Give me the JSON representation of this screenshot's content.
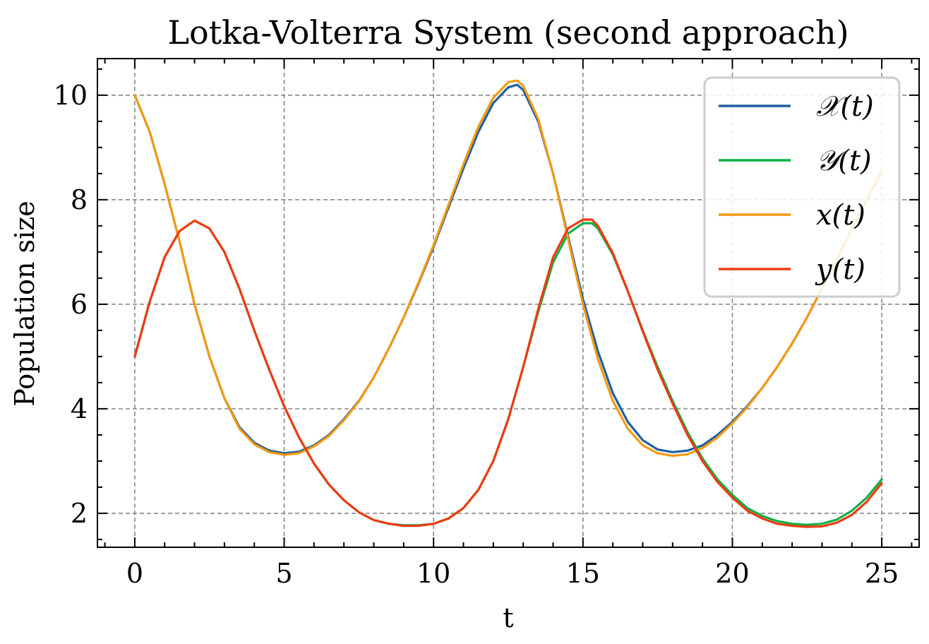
{
  "chart_data": {
    "type": "line",
    "title": "Lotka-Volterra System (second approach)",
    "xlabel": "t",
    "ylabel": "Population size",
    "xlim": [
      -1.25,
      26.25
    ],
    "ylim": [
      1.35,
      10.7
    ],
    "xticks": [
      0,
      5,
      10,
      15,
      20,
      25
    ],
    "yticks": [
      2,
      4,
      6,
      8,
      10
    ],
    "grid": true,
    "legend_position": "top-right",
    "series": [
      {
        "name": "𝒳(t)",
        "color": "#1f5fa0",
        "x": [
          0,
          0.5,
          1,
          1.5,
          2,
          2.5,
          3,
          3.5,
          4,
          4.5,
          5,
          5.5,
          6,
          6.5,
          7,
          7.5,
          8,
          8.5,
          9,
          9.5,
          10,
          10.5,
          11,
          11.5,
          12,
          12.5,
          12.8,
          13,
          13.5,
          14,
          14.5,
          15,
          15.5,
          16,
          16.5,
          17,
          17.5,
          18,
          18.5,
          19,
          19.5,
          20,
          20.5,
          21,
          21.5,
          22,
          22.5,
          23,
          23.5,
          24,
          24.5,
          25
        ],
        "y": [
          10.0,
          9.3,
          8.3,
          7.2,
          6.0,
          5.0,
          4.2,
          3.65,
          3.35,
          3.2,
          3.15,
          3.18,
          3.3,
          3.5,
          3.8,
          4.15,
          4.6,
          5.15,
          5.75,
          6.4,
          7.1,
          7.85,
          8.6,
          9.3,
          9.85,
          10.15,
          10.2,
          10.1,
          9.5,
          8.5,
          7.3,
          6.1,
          5.1,
          4.3,
          3.75,
          3.4,
          3.22,
          3.17,
          3.2,
          3.3,
          3.5,
          3.75,
          4.05,
          4.4,
          4.8,
          5.25,
          5.75,
          6.3,
          6.85,
          7.45,
          8.0,
          8.55
        ]
      },
      {
        "name": "𝒴(t)",
        "color": "#0db146",
        "x": [
          0,
          0.5,
          1,
          1.5,
          2,
          2.5,
          3,
          3.5,
          4,
          4.5,
          5,
          5.5,
          6,
          6.5,
          7,
          7.5,
          8,
          8.5,
          9,
          9.5,
          10,
          10.5,
          11,
          11.5,
          12,
          12.5,
          13,
          13.5,
          14,
          14.5,
          15,
          15.3,
          15.5,
          16,
          16.5,
          17,
          17.5,
          18,
          18.5,
          19,
          19.5,
          20,
          20.5,
          21,
          21.5,
          22,
          22.5,
          23,
          23.5,
          24,
          24.5,
          25
        ],
        "y": [
          5.0,
          6.05,
          6.9,
          7.4,
          7.6,
          7.45,
          7.0,
          6.3,
          5.5,
          4.75,
          4.05,
          3.45,
          2.95,
          2.55,
          2.25,
          2.02,
          1.87,
          1.8,
          1.77,
          1.77,
          1.8,
          1.9,
          2.1,
          2.45,
          3.0,
          3.8,
          4.8,
          5.85,
          6.8,
          7.35,
          7.55,
          7.55,
          7.45,
          6.95,
          6.25,
          5.5,
          4.8,
          4.15,
          3.55,
          3.05,
          2.65,
          2.35,
          2.1,
          1.95,
          1.85,
          1.8,
          1.78,
          1.8,
          1.88,
          2.05,
          2.3,
          2.65
        ]
      },
      {
        "name": "x(t)",
        "color": "#f59a12",
        "x": [
          0,
          0.5,
          1,
          1.5,
          2,
          2.5,
          3,
          3.5,
          4,
          4.5,
          5,
          5.5,
          6,
          6.5,
          7,
          7.5,
          8,
          8.5,
          9,
          9.5,
          10,
          10.5,
          11,
          11.5,
          12,
          12.5,
          12.8,
          13,
          13.5,
          14,
          14.5,
          15,
          15.5,
          16,
          16.5,
          17,
          17.5,
          18,
          18.5,
          19,
          19.5,
          20,
          20.5,
          21,
          21.5,
          22,
          22.5,
          23,
          23.5,
          24,
          24.5,
          25
        ],
        "y": [
          10.0,
          9.3,
          8.3,
          7.2,
          6.0,
          5.0,
          4.2,
          3.62,
          3.32,
          3.17,
          3.12,
          3.15,
          3.28,
          3.48,
          3.78,
          4.14,
          4.6,
          5.15,
          5.75,
          6.42,
          7.13,
          7.9,
          8.68,
          9.4,
          9.95,
          10.25,
          10.28,
          10.18,
          9.55,
          8.5,
          7.25,
          6.0,
          4.95,
          4.15,
          3.62,
          3.3,
          3.15,
          3.1,
          3.13,
          3.25,
          3.45,
          3.72,
          4.03,
          4.4,
          4.8,
          5.25,
          5.75,
          6.3,
          6.85,
          7.45,
          8.0,
          8.55
        ]
      },
      {
        "name": "y(t)",
        "color": "#ee3a12",
        "x": [
          0,
          0.5,
          1,
          1.5,
          2,
          2.5,
          3,
          3.5,
          4,
          4.5,
          5,
          5.5,
          6,
          6.5,
          7,
          7.5,
          8,
          8.5,
          9,
          9.5,
          10,
          10.5,
          11,
          11.5,
          12,
          12.5,
          13,
          13.5,
          14,
          14.5,
          15,
          15.3,
          15.5,
          16,
          16.5,
          17,
          17.5,
          18,
          18.5,
          19,
          19.5,
          20,
          20.5,
          21,
          21.5,
          22,
          22.5,
          23,
          23.5,
          24,
          24.5,
          25
        ],
        "y": [
          5.0,
          6.05,
          6.9,
          7.4,
          7.6,
          7.45,
          7.0,
          6.3,
          5.5,
          4.75,
          4.05,
          3.45,
          2.95,
          2.55,
          2.25,
          2.02,
          1.87,
          1.8,
          1.76,
          1.76,
          1.8,
          1.9,
          2.1,
          2.45,
          3.0,
          3.8,
          4.8,
          5.9,
          6.9,
          7.45,
          7.62,
          7.62,
          7.5,
          6.98,
          6.25,
          5.48,
          4.75,
          4.1,
          3.5,
          3.0,
          2.6,
          2.3,
          2.05,
          1.9,
          1.8,
          1.76,
          1.74,
          1.75,
          1.82,
          1.97,
          2.22,
          2.58
        ]
      }
    ]
  }
}
